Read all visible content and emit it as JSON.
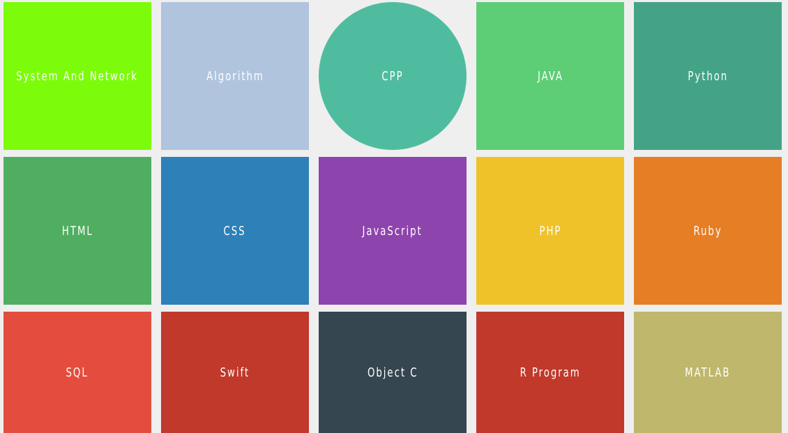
{
  "tiles": [
    {
      "label": "System And Network",
      "color": "#7cfc0a",
      "shape": "square"
    },
    {
      "label": "Algorithm",
      "color": "#b0c4de",
      "shape": "square"
    },
    {
      "label": "CPP",
      "color": "#50bc9f",
      "shape": "circle"
    },
    {
      "label": "JAVA",
      "color": "#5dce76",
      "shape": "square"
    },
    {
      "label": "Python",
      "color": "#44a387",
      "shape": "square"
    },
    {
      "label": "HTML",
      "color": "#50ae60",
      "shape": "square"
    },
    {
      "label": "CSS",
      "color": "#2e80b8",
      "shape": "square"
    },
    {
      "label": "JavaScript",
      "color": "#8e44ad",
      "shape": "square"
    },
    {
      "label": "PHP",
      "color": "#f0c22a",
      "shape": "square"
    },
    {
      "label": "Ruby",
      "color": "#e67e26",
      "shape": "square"
    },
    {
      "label": "SQL",
      "color": "#e44d3d",
      "shape": "square"
    },
    {
      "label": "Swift",
      "color": "#c0392b",
      "shape": "square"
    },
    {
      "label": "Object C",
      "color": "#354651",
      "shape": "square"
    },
    {
      "label": "R Program",
      "color": "#c0392b",
      "shape": "square"
    },
    {
      "label": "MATLAB",
      "color": "#beb76c",
      "shape": "square"
    }
  ]
}
